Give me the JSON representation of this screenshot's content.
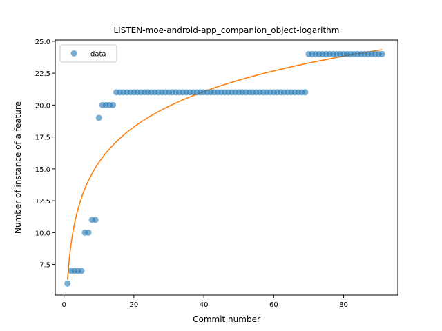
{
  "chart_data": {
    "type": "scatter",
    "title": "LISTEN-moe-android-app_companion_object-logarithm",
    "xlabel": "Commit number",
    "ylabel": "Number of instance of a feature",
    "xlim": [
      -2.5,
      95.5
    ],
    "ylim": [
      5.1,
      25.1
    ],
    "x_ticks": [
      0,
      20,
      40,
      60,
      80
    ],
    "y_ticks": [
      7.5,
      10.0,
      12.5,
      15.0,
      17.5,
      20.0,
      22.5,
      25.0
    ],
    "x_tick_labels": [
      "0",
      "20",
      "40",
      "60",
      "80"
    ],
    "y_tick_labels": [
      "7.5",
      "10.0",
      "12.5",
      "15.0",
      "17.5",
      "20.0",
      "22.5",
      "25.0"
    ],
    "grid": false,
    "legend_position": "top-left",
    "series": [
      {
        "name": "data",
        "kind": "scatter",
        "color": "#1f77b4",
        "points": [
          [
            1,
            6
          ],
          [
            2,
            7
          ],
          [
            3,
            7
          ],
          [
            4,
            7
          ],
          [
            5,
            7
          ],
          [
            6,
            10
          ],
          [
            7,
            10
          ],
          [
            8,
            11
          ],
          [
            9,
            11
          ],
          [
            10,
            19
          ],
          [
            11,
            20
          ],
          [
            12,
            20
          ],
          [
            13,
            20
          ],
          [
            14,
            20
          ],
          [
            15,
            21
          ],
          [
            16,
            21
          ],
          [
            17,
            21
          ],
          [
            18,
            21
          ],
          [
            19,
            21
          ],
          [
            20,
            21
          ],
          [
            21,
            21
          ],
          [
            22,
            21
          ],
          [
            23,
            21
          ],
          [
            24,
            21
          ],
          [
            25,
            21
          ],
          [
            26,
            21
          ],
          [
            27,
            21
          ],
          [
            28,
            21
          ],
          [
            29,
            21
          ],
          [
            30,
            21
          ],
          [
            31,
            21
          ],
          [
            32,
            21
          ],
          [
            33,
            21
          ],
          [
            34,
            21
          ],
          [
            35,
            21
          ],
          [
            36,
            21
          ],
          [
            37,
            21
          ],
          [
            38,
            21
          ],
          [
            39,
            21
          ],
          [
            40,
            21
          ],
          [
            41,
            21
          ],
          [
            42,
            21
          ],
          [
            43,
            21
          ],
          [
            44,
            21
          ],
          [
            45,
            21
          ],
          [
            46,
            21
          ],
          [
            47,
            21
          ],
          [
            48,
            21
          ],
          [
            49,
            21
          ],
          [
            50,
            21
          ],
          [
            51,
            21
          ],
          [
            52,
            21
          ],
          [
            53,
            21
          ],
          [
            54,
            21
          ],
          [
            55,
            21
          ],
          [
            56,
            21
          ],
          [
            57,
            21
          ],
          [
            58,
            21
          ],
          [
            59,
            21
          ],
          [
            60,
            21
          ],
          [
            61,
            21
          ],
          [
            62,
            21
          ],
          [
            63,
            21
          ],
          [
            64,
            21
          ],
          [
            65,
            21
          ],
          [
            66,
            21
          ],
          [
            67,
            21
          ],
          [
            68,
            21
          ],
          [
            69,
            21
          ],
          [
            70,
            24
          ],
          [
            71,
            24
          ],
          [
            72,
            24
          ],
          [
            73,
            24
          ],
          [
            74,
            24
          ],
          [
            75,
            24
          ],
          [
            76,
            24
          ],
          [
            77,
            24
          ],
          [
            78,
            24
          ],
          [
            79,
            24
          ],
          [
            80,
            24
          ],
          [
            81,
            24
          ],
          [
            82,
            24
          ],
          [
            83,
            24
          ],
          [
            84,
            24
          ],
          [
            85,
            24
          ],
          [
            86,
            24
          ],
          [
            87,
            24
          ],
          [
            88,
            24
          ],
          [
            89,
            24
          ],
          [
            90,
            24
          ],
          [
            91,
            24
          ]
        ]
      },
      {
        "name": "",
        "kind": "line",
        "color": "#ff7f0e",
        "model": "logarithmic",
        "coefficients": {
          "a": 6.3,
          "b": 4.0
        },
        "x_range": [
          1,
          91
        ]
      }
    ]
  }
}
